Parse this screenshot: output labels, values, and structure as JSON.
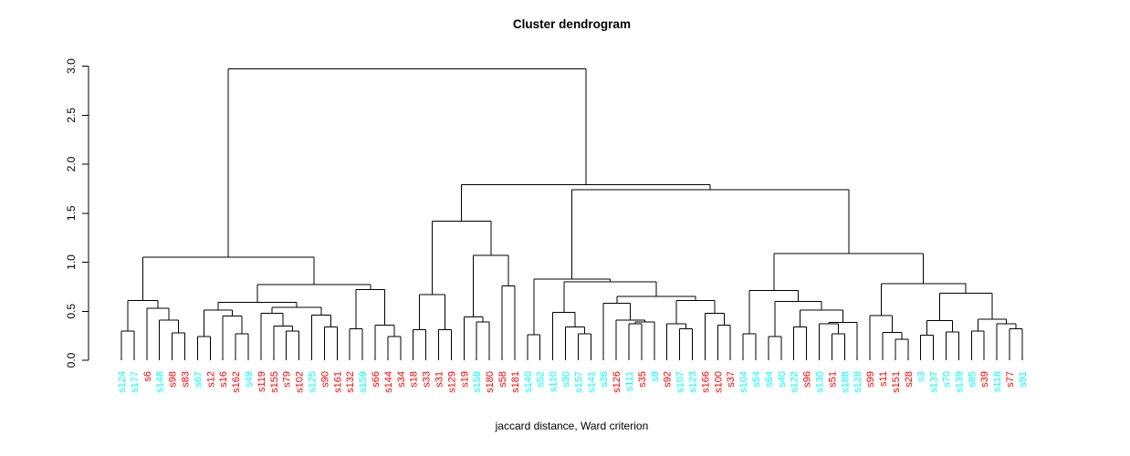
{
  "chart_data": {
    "type": "dendrogram",
    "title": "Cluster dendrogram",
    "xlabel": "jaccard distance, Ward criterion",
    "ylabel": "",
    "ylim": [
      0.0,
      3.0
    ],
    "y_ticks": [
      "0.0",
      "0.5",
      "1.0",
      "1.5",
      "2.0",
      "2.5",
      "3.0"
    ],
    "grid": false,
    "line_color": "#000000",
    "leaf_colors": {
      "red": "#FF0000",
      "cyan": "#00FFFF"
    },
    "leaves": [
      {
        "label": "s124",
        "color": "cyan"
      },
      {
        "label": "s177",
        "color": "cyan"
      },
      {
        "label": "s6",
        "color": "red"
      },
      {
        "label": "s148",
        "color": "cyan"
      },
      {
        "label": "s98",
        "color": "red"
      },
      {
        "label": "s83",
        "color": "red"
      },
      {
        "label": "s67",
        "color": "cyan"
      },
      {
        "label": "s12",
        "color": "red"
      },
      {
        "label": "s16",
        "color": "red"
      },
      {
        "label": "s162",
        "color": "red"
      },
      {
        "label": "s49",
        "color": "cyan"
      },
      {
        "label": "s119",
        "color": "red"
      },
      {
        "label": "s155",
        "color": "red"
      },
      {
        "label": "s79",
        "color": "red"
      },
      {
        "label": "s102",
        "color": "red"
      },
      {
        "label": "s125",
        "color": "cyan"
      },
      {
        "label": "s90",
        "color": "red"
      },
      {
        "label": "s161",
        "color": "red"
      },
      {
        "label": "s132",
        "color": "red"
      },
      {
        "label": "s159",
        "color": "cyan"
      },
      {
        "label": "s66",
        "color": "red"
      },
      {
        "label": "s144",
        "color": "red"
      },
      {
        "label": "s34",
        "color": "red"
      },
      {
        "label": "s18",
        "color": "red"
      },
      {
        "label": "s33",
        "color": "red"
      },
      {
        "label": "s31",
        "color": "red"
      },
      {
        "label": "s129",
        "color": "red"
      },
      {
        "label": "s19",
        "color": "red"
      },
      {
        "label": "s158",
        "color": "cyan"
      },
      {
        "label": "s180",
        "color": "red"
      },
      {
        "label": "s58",
        "color": "red"
      },
      {
        "label": "s181",
        "color": "red"
      },
      {
        "label": "s140",
        "color": "cyan"
      },
      {
        "label": "s52",
        "color": "cyan"
      },
      {
        "label": "s110",
        "color": "cyan"
      },
      {
        "label": "s30",
        "color": "cyan"
      },
      {
        "label": "s157",
        "color": "cyan"
      },
      {
        "label": "s141",
        "color": "cyan"
      },
      {
        "label": "s36",
        "color": "cyan"
      },
      {
        "label": "s126",
        "color": "red"
      },
      {
        "label": "s111",
        "color": "cyan"
      },
      {
        "label": "s35",
        "color": "red"
      },
      {
        "label": "s9",
        "color": "cyan"
      },
      {
        "label": "s92",
        "color": "red"
      },
      {
        "label": "s107",
        "color": "cyan"
      },
      {
        "label": "s123",
        "color": "cyan"
      },
      {
        "label": "s166",
        "color": "red"
      },
      {
        "label": "s100",
        "color": "red"
      },
      {
        "label": "s37",
        "color": "red"
      },
      {
        "label": "s104",
        "color": "cyan"
      },
      {
        "label": "s54",
        "color": "cyan"
      },
      {
        "label": "s64",
        "color": "cyan"
      },
      {
        "label": "s40",
        "color": "cyan"
      },
      {
        "label": "s122",
        "color": "cyan"
      },
      {
        "label": "s96",
        "color": "red"
      },
      {
        "label": "s130",
        "color": "cyan"
      },
      {
        "label": "s51",
        "color": "red"
      },
      {
        "label": "s188",
        "color": "cyan"
      },
      {
        "label": "s128",
        "color": "cyan"
      },
      {
        "label": "s99",
        "color": "red"
      },
      {
        "label": "s11",
        "color": "red"
      },
      {
        "label": "s151",
        "color": "red"
      },
      {
        "label": "s28",
        "color": "red"
      },
      {
        "label": "s3",
        "color": "cyan"
      },
      {
        "label": "s137",
        "color": "cyan"
      },
      {
        "label": "s70",
        "color": "cyan"
      },
      {
        "label": "s139",
        "color": "cyan"
      },
      {
        "label": "s85",
        "color": "cyan"
      },
      {
        "label": "s39",
        "color": "red"
      },
      {
        "label": "s118",
        "color": "cyan"
      },
      {
        "label": "s77",
        "color": "red"
      },
      {
        "label": "s91",
        "color": "cyan"
      }
    ],
    "tree": {
      "h": 2.97,
      "c": [
        {
          "h": 1.05,
          "c": [
            {
              "h": 0.61,
              "c": [
                {
                  "h": 0.3,
                  "c": [
                    "s124",
                    "s177"
                  ]
                },
                {
                  "h": 0.53,
                  "c": [
                    "s6",
                    {
                      "h": 0.41,
                      "c": [
                        "s148",
                        {
                          "h": 0.28,
                          "c": [
                            "s98",
                            "s83"
                          ]
                        }
                      ]
                    }
                  ]
                }
              ]
            },
            {
              "h": 0.77,
              "c": [
                {
                  "h": 0.59,
                  "c": [
                    {
                      "h": 0.51,
                      "c": [
                        {
                          "h": 0.24,
                          "c": [
                            "s67",
                            "s12"
                          ]
                        },
                        {
                          "h": 0.45,
                          "c": [
                            "s16",
                            {
                              "h": 0.27,
                              "c": [
                                "s162",
                                "s49"
                              ]
                            }
                          ]
                        }
                      ]
                    },
                    {
                      "h": 0.54,
                      "c": [
                        {
                          "h": 0.48,
                          "c": [
                            "s119",
                            {
                              "h": 0.35,
                              "c": [
                                "s155",
                                {
                                  "h": 0.3,
                                  "c": [
                                    "s79",
                                    "s102"
                                  ]
                                }
                              ]
                            }
                          ]
                        },
                        {
                          "h": 0.46,
                          "c": [
                            "s125",
                            {
                              "h": 0.34,
                              "c": [
                                "s90",
                                "s161"
                              ]
                            }
                          ]
                        }
                      ]
                    }
                  ]
                },
                {
                  "h": 0.72,
                  "c": [
                    {
                      "h": 0.32,
                      "c": [
                        "s132",
                        "s159"
                      ]
                    },
                    {
                      "h": 0.36,
                      "c": [
                        "s66",
                        {
                          "h": 0.24,
                          "c": [
                            "s144",
                            "s34"
                          ]
                        }
                      ]
                    }
                  ]
                }
              ]
            }
          ]
        },
        {
          "h": 1.79,
          "c": [
            {
              "h": 1.42,
              "c": [
                {
                  "h": 0.67,
                  "c": [
                    {
                      "h": 0.31,
                      "c": [
                        "s18",
                        "s33"
                      ]
                    },
                    {
                      "h": 0.31,
                      "c": [
                        "s31",
                        "s129"
                      ]
                    }
                  ]
                },
                {
                  "h": 1.07,
                  "c": [
                    {
                      "h": 0.44,
                      "c": [
                        "s19",
                        {
                          "h": 0.39,
                          "c": [
                            "s158",
                            "s180"
                          ]
                        }
                      ]
                    },
                    {
                      "h": 0.76,
                      "c": [
                        "s58",
                        "s181"
                      ]
                    }
                  ]
                }
              ]
            },
            {
              "h": 1.74,
              "c": [
                {
                  "h": 0.83,
                  "c": [
                    {
                      "h": 0.26,
                      "c": [
                        "s140",
                        "s52"
                      ]
                    },
                    {
                      "h": 0.8,
                      "c": [
                        {
                          "h": 0.49,
                          "c": [
                            "s110",
                            {
                              "h": 0.34,
                              "c": [
                                "s30",
                                {
                                  "h": 0.27,
                                  "c": [
                                    "s157",
                                    "s141"
                                  ]
                                }
                              ]
                            }
                          ]
                        },
                        {
                          "h": 0.65,
                          "c": [
                            {
                              "h": 0.58,
                              "c": [
                                "s36",
                                {
                                  "h": 0.41,
                                  "c": [
                                    "s126",
                                    {
                                      "h": 0.39,
                                      "c": [
                                        {
                                          "h": 0.37,
                                          "c": [
                                            "s111",
                                            "s35"
                                          ]
                                        },
                                        "s9"
                                      ]
                                    }
                                  ]
                                }
                              ]
                            },
                            {
                              "h": 0.61,
                              "c": [
                                {
                                  "h": 0.37,
                                  "c": [
                                    "s92",
                                    {
                                      "h": 0.32,
                                      "c": [
                                        "s107",
                                        "s123"
                                      ]
                                    }
                                  ]
                                },
                                {
                                  "h": 0.48,
                                  "c": [
                                    "s166",
                                    {
                                      "h": 0.36,
                                      "c": [
                                        "s100",
                                        "s37"
                                      ]
                                    }
                                  ]
                                }
                              ]
                            }
                          ]
                        }
                      ]
                    }
                  ]
                },
                {
                  "h": 1.09,
                  "c": [
                    {
                      "h": 0.71,
                      "c": [
                        {
                          "h": 0.27,
                          "c": [
                            "s104",
                            "s54"
                          ]
                        },
                        {
                          "h": 0.6,
                          "c": [
                            {
                              "h": 0.24,
                              "c": [
                                "s64",
                                "s40"
                              ]
                            },
                            {
                              "h": 0.51,
                              "c": [
                                {
                                  "h": 0.34,
                                  "c": [
                                    "s122",
                                    "s96"
                                  ]
                                },
                                {
                                  "h": 0.385,
                                  "c": [
                                    {
                                      "h": 0.37,
                                      "c": [
                                        "s130",
                                        {
                                          "h": 0.27,
                                          "c": [
                                            "s51",
                                            "s188"
                                          ]
                                        }
                                      ]
                                    },
                                    "s128"
                                  ]
                                }
                              ]
                            }
                          ]
                        }
                      ]
                    },
                    {
                      "h": 0.78,
                      "c": [
                        {
                          "h": 0.455,
                          "c": [
                            "s99",
                            {
                              "h": 0.283,
                              "c": [
                                "s11",
                                {
                                  "h": 0.215,
                                  "c": [
                                    "s151",
                                    "s28"
                                  ]
                                }
                              ]
                            }
                          ]
                        },
                        {
                          "h": 0.685,
                          "c": [
                            {
                              "h": 0.405,
                              "c": [
                                {
                                  "h": 0.255,
                                  "c": [
                                    "s3",
                                    "s137"
                                  ]
                                },
                                {
                                  "h": 0.287,
                                  "c": [
                                    "s70",
                                    "s139"
                                  ]
                                }
                              ]
                            },
                            {
                              "h": 0.42,
                              "c": [
                                {
                                  "h": 0.3,
                                  "c": [
                                    "s85",
                                    "s39"
                                  ]
                                },
                                {
                                  "h": 0.37,
                                  "c": [
                                    "s118",
                                    {
                                      "h": 0.32,
                                      "c": [
                                        "s77",
                                        "s91"
                                      ]
                                    }
                                  ]
                                }
                              ]
                            }
                          ]
                        }
                      ]
                    }
                  ]
                }
              ]
            }
          ]
        }
      ]
    }
  },
  "colors": {
    "background": "#FFFFFF",
    "axis": "#000000",
    "title": "#000000"
  }
}
